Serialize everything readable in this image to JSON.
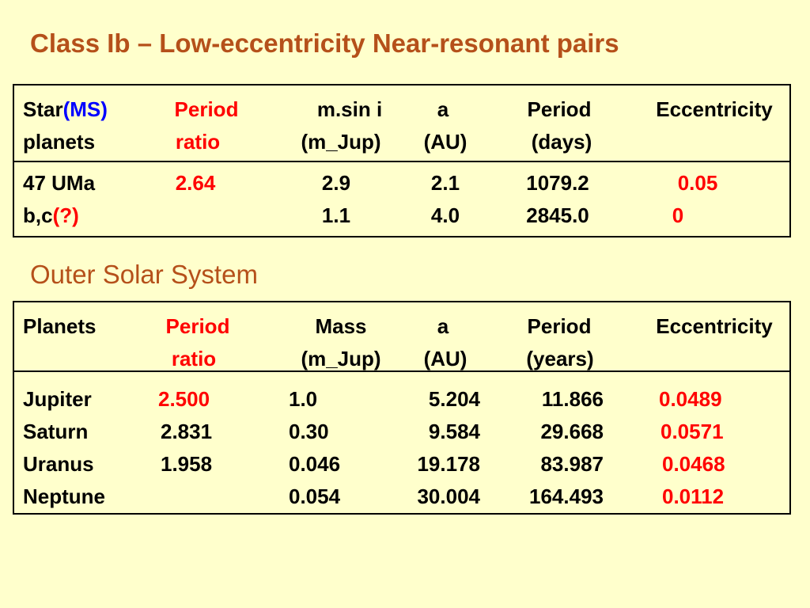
{
  "title": "Class Ib – Low-eccentricity Near-resonant pairs",
  "table1": {
    "header_row1": {
      "star_prefix": "Star",
      "star_ms": "(MS)",
      "period_ratio": "Period",
      "msini": "m.sin i",
      "a": "a",
      "period": "Period",
      "eccentricity": "Eccentricity"
    },
    "header_row2": {
      "planets": "planets",
      "period_ratio": "ratio",
      "msini": "(m_Jup)",
      "a": "(AU)",
      "period": "(days)"
    },
    "rows": [
      {
        "name": "47 UMa",
        "period_ratio": "2.64",
        "mass": "2.9",
        "a": "2.1",
        "period": "1079.2",
        "eccentricity": "0.05"
      },
      {
        "name_prefix": "b,c",
        "name_flag": "(?)",
        "mass": "1.1",
        "a": "4.0",
        "period": "2845.0",
        "eccentricity": "0"
      }
    ]
  },
  "subtitle": "Outer Solar System",
  "table2": {
    "header_row1": {
      "planets": "Planets",
      "period_ratio": "Period",
      "mass": "Mass",
      "a": "a",
      "period": "Period",
      "eccentricity": "Eccentricity"
    },
    "header_row2": {
      "period_ratio": "ratio",
      "mass": "(m_Jup)",
      "a": "(AU)",
      "period": "(years)"
    },
    "rows": [
      {
        "name": "Jupiter",
        "period_ratio": "2.500",
        "mass": "1.0",
        "a": "5.204",
        "period": "11.866",
        "eccentricity": "0.0489"
      },
      {
        "name": "Saturn",
        "period_ratio": "2.831",
        "mass": "0.30",
        "a": "9.584",
        "period": "29.668",
        "eccentricity": "0.0571"
      },
      {
        "name": "Uranus",
        "period_ratio": "1.958",
        "mass": "0.046",
        "a": "19.178",
        "period": "83.987",
        "eccentricity": "0.0468"
      },
      {
        "name": "Neptune",
        "period_ratio": "",
        "mass": "0.054",
        "a": "30.004",
        "period": "164.493",
        "eccentricity": "0.0112"
      }
    ]
  },
  "colors": {
    "background": "#ffffcc",
    "title": "#b5501a",
    "highlight_red": "#ff0000",
    "highlight_blue": "#0000ff"
  }
}
